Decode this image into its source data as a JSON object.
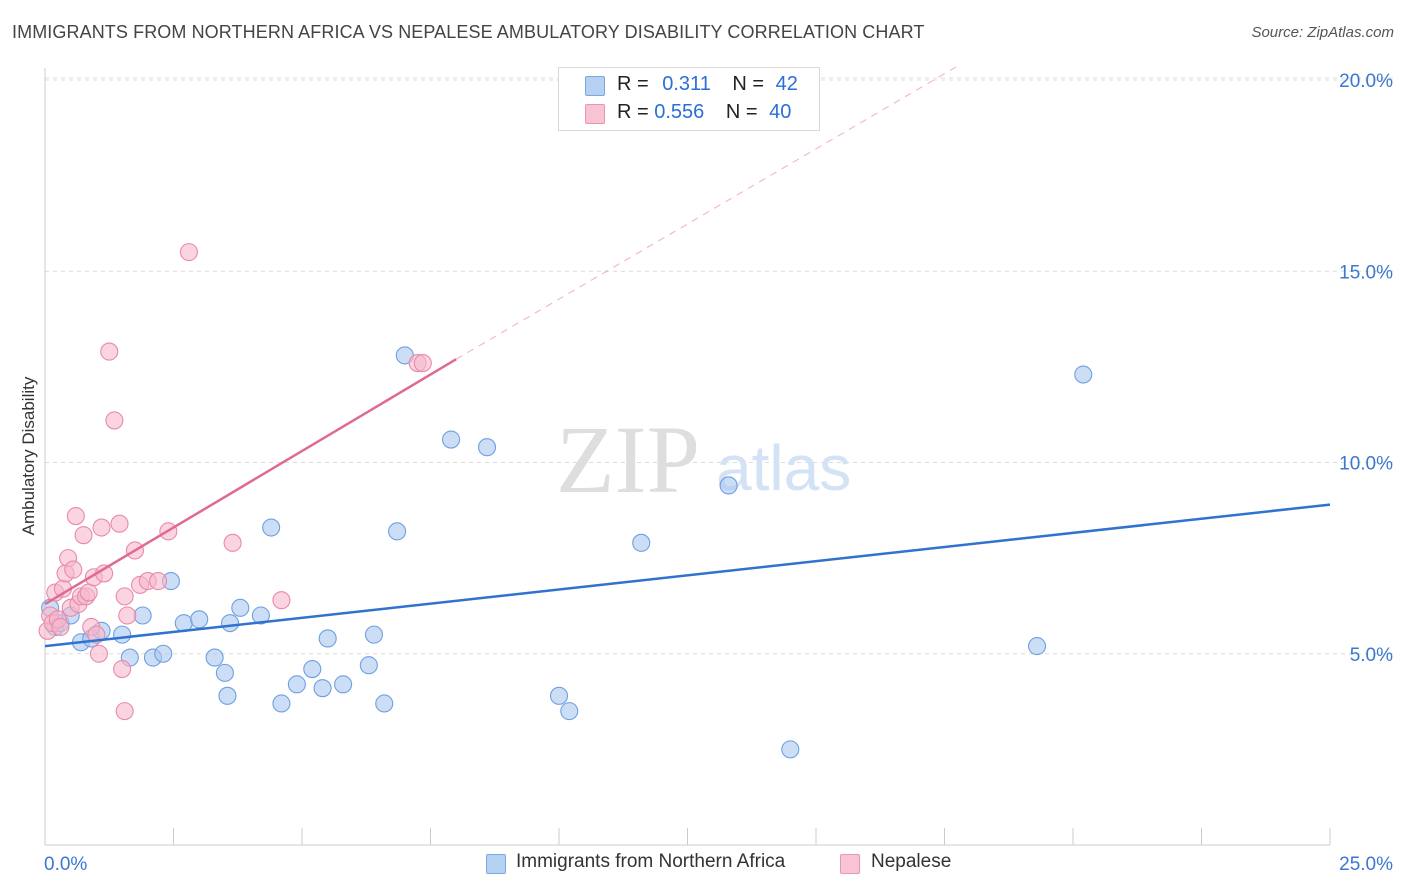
{
  "title": "IMMIGRANTS FROM NORTHERN AFRICA VS NEPALESE AMBULATORY DISABILITY CORRELATION CHART",
  "source": "Source: ZipAtlas.com",
  "watermark": {
    "zip": "ZIP",
    "atlas": "atlas"
  },
  "colors": {
    "blue_fill": "#aac8f0",
    "blue_stroke": "#6f9fe0",
    "blue_line": "#2f72d0",
    "pink_fill": "#f6b8cb",
    "pink_stroke": "#e98aa8",
    "pink_line": "#e06a92",
    "axis_text": "#3a78d0",
    "grid": "#dcdcdc"
  },
  "legend_top": [
    {
      "r_label": "R = ",
      "r_value": "0.311",
      "n_label": "N = ",
      "n_value": "42"
    },
    {
      "r_label": "R = ",
      "r_value": "0.556",
      "n_label": "N = ",
      "n_value": "40"
    }
  ],
  "chart_data": {
    "type": "scatter",
    "title": "IMMIGRANTS FROM NORTHERN AFRICA VS NEPALESE AMBULATORY DISABILITY CORRELATION CHART",
    "xlabel": "",
    "ylabel": "Ambulatory Disability",
    "xlim": [
      0,
      25
    ],
    "ylim": [
      0,
      20.5
    ],
    "x_tick_labels": [
      "0.0%",
      "25.0%"
    ],
    "y_ticks": [
      5,
      10,
      15,
      20
    ],
    "y_tick_labels": [
      "5.0%",
      "10.0%",
      "15.0%",
      "20.0%"
    ],
    "grid": true,
    "series": [
      {
        "name": "Immigrants from Northern Africa",
        "color": "blue",
        "r": 0.311,
        "n": 42,
        "trend": {
          "x0": 0,
          "y0": 5.2,
          "x1": 25,
          "y1": 8.9
        },
        "points": [
          [
            0.1,
            6.2
          ],
          [
            0.2,
            5.7
          ],
          [
            0.3,
            5.8
          ],
          [
            0.5,
            6.0
          ],
          [
            0.7,
            5.3
          ],
          [
            0.9,
            5.4
          ],
          [
            1.1,
            5.6
          ],
          [
            1.5,
            5.5
          ],
          [
            1.65,
            4.9
          ],
          [
            1.9,
            6.0
          ],
          [
            2.1,
            4.9
          ],
          [
            2.3,
            5.0
          ],
          [
            2.45,
            6.9
          ],
          [
            2.7,
            5.8
          ],
          [
            3.0,
            5.9
          ],
          [
            3.3,
            4.9
          ],
          [
            3.5,
            4.5
          ],
          [
            3.55,
            3.9
          ],
          [
            3.6,
            5.8
          ],
          [
            3.8,
            6.2
          ],
          [
            4.2,
            6.0
          ],
          [
            4.4,
            8.3
          ],
          [
            4.6,
            3.7
          ],
          [
            4.9,
            4.2
          ],
          [
            5.2,
            4.6
          ],
          [
            5.4,
            4.1
          ],
          [
            5.5,
            5.4
          ],
          [
            5.8,
            4.2
          ],
          [
            6.3,
            4.7
          ],
          [
            6.4,
            5.5
          ],
          [
            6.6,
            3.7
          ],
          [
            6.85,
            8.2
          ],
          [
            7.0,
            12.8
          ],
          [
            7.9,
            10.6
          ],
          [
            8.6,
            10.4
          ],
          [
            10.0,
            3.9
          ],
          [
            10.2,
            3.5
          ],
          [
            11.6,
            7.9
          ],
          [
            13.3,
            9.4
          ],
          [
            14.5,
            2.5
          ],
          [
            19.3,
            5.2
          ],
          [
            20.2,
            12.3
          ]
        ]
      },
      {
        "name": "Nepalese",
        "color": "pink",
        "r": 0.556,
        "n": 40,
        "trend": {
          "x0": 0,
          "y0": 6.3,
          "x1": 8.0,
          "y1": 12.7
        },
        "trend_ext": {
          "x0": 8.0,
          "y0": 12.7,
          "x1": 17.8,
          "y1": 20.4
        },
        "points": [
          [
            0.05,
            5.6
          ],
          [
            0.1,
            6.0
          ],
          [
            0.15,
            5.8
          ],
          [
            0.2,
            6.6
          ],
          [
            0.25,
            5.9
          ],
          [
            0.3,
            5.7
          ],
          [
            0.35,
            6.7
          ],
          [
            0.4,
            7.1
          ],
          [
            0.45,
            7.5
          ],
          [
            0.5,
            6.2
          ],
          [
            0.55,
            7.2
          ],
          [
            0.6,
            8.6
          ],
          [
            0.65,
            6.3
          ],
          [
            0.7,
            6.5
          ],
          [
            0.75,
            8.1
          ],
          [
            0.8,
            6.5
          ],
          [
            0.85,
            6.6
          ],
          [
            0.9,
            5.7
          ],
          [
            0.95,
            7.0
          ],
          [
            1.0,
            5.5
          ],
          [
            1.05,
            5.0
          ],
          [
            1.1,
            8.3
          ],
          [
            1.15,
            7.1
          ],
          [
            1.25,
            12.9
          ],
          [
            1.35,
            11.1
          ],
          [
            1.45,
            8.4
          ],
          [
            1.55,
            6.5
          ],
          [
            1.5,
            4.6
          ],
          [
            1.55,
            3.5
          ],
          [
            1.6,
            6.0
          ],
          [
            1.75,
            7.7
          ],
          [
            1.85,
            6.8
          ],
          [
            2.0,
            6.9
          ],
          [
            2.2,
            6.9
          ],
          [
            2.4,
            8.2
          ],
          [
            2.8,
            15.5
          ],
          [
            3.65,
            7.9
          ],
          [
            4.6,
            6.4
          ],
          [
            7.25,
            12.6
          ],
          [
            7.35,
            12.6
          ]
        ]
      }
    ]
  },
  "bottom_legend": [
    {
      "label": "Immigrants from Northern Africa"
    },
    {
      "label": "Nepalese"
    }
  ]
}
